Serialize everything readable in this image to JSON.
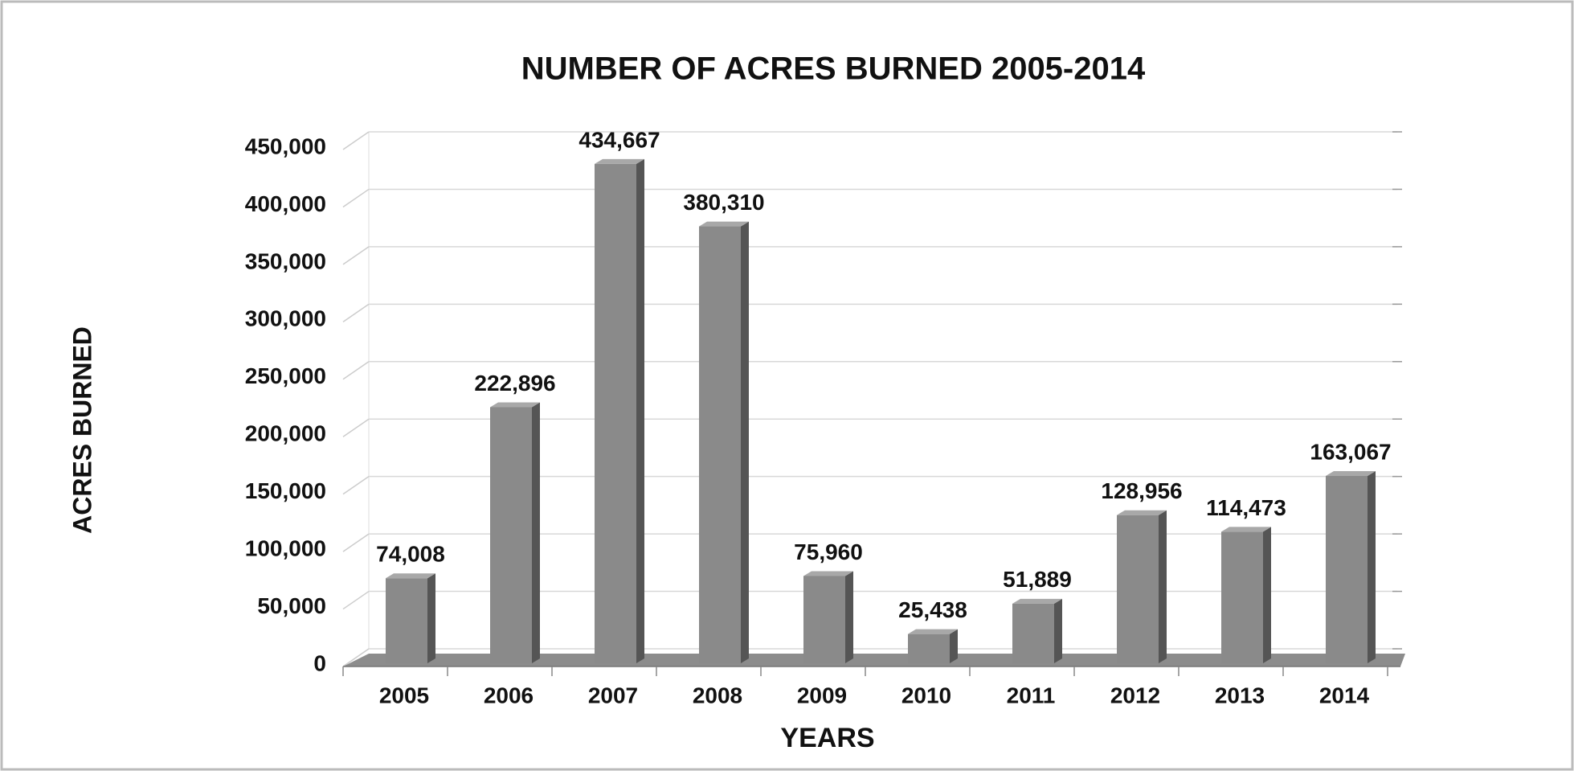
{
  "chart_data": {
    "type": "bar",
    "title": "NUMBER OF ACRES BURNED 2005-2014",
    "x_label": "YEARS",
    "y_label": "ACRES BURNED",
    "categories": [
      "2005",
      "2006",
      "2007",
      "2008",
      "2009",
      "2010",
      "2011",
      "2012",
      "2013",
      "2014"
    ],
    "values": [
      74008,
      222896,
      434667,
      380310,
      75960,
      25438,
      51889,
      128956,
      114473,
      163067
    ],
    "value_labels": [
      "74,008",
      "222,896",
      "434,667",
      "380,310",
      "75,960",
      "25,438",
      "51,889",
      "128,956",
      "114,473",
      "163,067"
    ],
    "color": "#8a8a8a",
    "ylim": [
      0,
      450000
    ],
    "yticks": [
      0,
      {
        "value": 50000,
        "label": "50,000"
      },
      {
        "value": 100000,
        "label": "100,000"
      },
      {
        "value": 150000,
        "label": "150,000"
      },
      {
        "value": 200000,
        "label": "200,000"
      },
      {
        "value": 250000,
        "label": "250,000"
      },
      {
        "value": 300000,
        "label": "300,000"
      },
      {
        "value": 350000,
        "label": "350,000"
      },
      {
        "value": 400000,
        "label": "400,000"
      },
      {
        "value": 450000,
        "label": "450,000"
      }
    ],
    "grid": true
  }
}
